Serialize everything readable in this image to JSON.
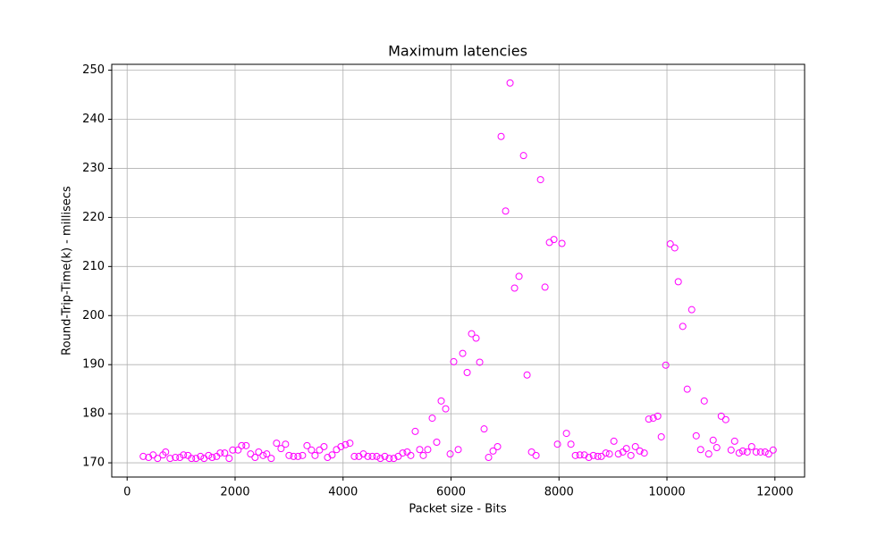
{
  "chart_data": {
    "type": "scatter",
    "title": "Maximum latencies",
    "x_label": "Packet size - Bits",
    "y_label": "Round-Trip-Time(k) - millisecs",
    "color": "#ff00ff",
    "grid": true,
    "xlim": [
      -285,
      12550
    ],
    "ylim": [
      167.1,
      251.2
    ],
    "xticks": [
      0,
      2000,
      4000,
      6000,
      8000,
      10000,
      12000
    ],
    "yticks": [
      170,
      180,
      190,
      200,
      210,
      220,
      230,
      240,
      250
    ],
    "x": [
      298,
      398,
      481,
      564,
      663,
      713,
      796,
      895,
      978,
      1044,
      1127,
      1193,
      1276,
      1359,
      1425,
      1508,
      1575,
      1658,
      1724,
      1807,
      1890,
      1956,
      2055,
      2122,
      2204,
      2287,
      2370,
      2437,
      2519,
      2586,
      2669,
      2768,
      2851,
      2934,
      3000,
      3083,
      3166,
      3249,
      3332,
      3415,
      3481,
      3564,
      3647,
      3713,
      3796,
      3879,
      3961,
      4044,
      4127,
      4210,
      4293,
      4376,
      4459,
      4542,
      4624,
      4691,
      4774,
      4856,
      4939,
      5022,
      5105,
      5188,
      5254,
      5337,
      5420,
      5486,
      5569,
      5652,
      5735,
      5818,
      5901,
      5984,
      6050,
      6133,
      6216,
      6299,
      6381,
      6464,
      6531,
      6613,
      6696,
      6779,
      6862,
      6928,
      7011,
      7094,
      7177,
      7260,
      7343,
      7409,
      7492,
      7575,
      7658,
      7741,
      7823,
      7906,
      7972,
      8055,
      8138,
      8221,
      8304,
      8387,
      8470,
      8553,
      8636,
      8718,
      8785,
      8868,
      8934,
      9017,
      9100,
      9183,
      9249,
      9332,
      9415,
      9497,
      9580,
      9663,
      9746,
      9829,
      9895,
      9978,
      10061,
      10144,
      10210,
      10293,
      10376,
      10459,
      10542,
      10624,
      10691,
      10774,
      10856,
      10923,
      11006,
      11089,
      11188,
      11254,
      11337,
      11404,
      11486,
      11569,
      11652,
      11735,
      11818,
      11884,
      11967
    ],
    "values": [
      171.3,
      171.1,
      171.6,
      170.9,
      171.6,
      172.2,
      170.9,
      171.1,
      171.1,
      171.6,
      171.5,
      170.9,
      170.9,
      171.3,
      170.9,
      171.5,
      171.1,
      171.3,
      172.0,
      172.0,
      170.9,
      172.6,
      172.6,
      173.5,
      173.5,
      171.8,
      171.1,
      172.2,
      171.5,
      171.8,
      170.9,
      174.0,
      172.9,
      173.8,
      171.5,
      171.3,
      171.3,
      171.5,
      173.5,
      172.6,
      171.5,
      172.6,
      173.3,
      171.1,
      171.6,
      172.7,
      173.3,
      173.7,
      174.0,
      171.3,
      171.3,
      171.8,
      171.3,
      171.3,
      171.3,
      170.9,
      171.3,
      170.9,
      170.9,
      171.3,
      172.0,
      172.2,
      171.5,
      176.4,
      172.7,
      171.5,
      172.7,
      179.1,
      174.2,
      182.6,
      181.0,
      171.8,
      190.6,
      172.7,
      192.3,
      188.4,
      196.3,
      195.4,
      190.5,
      176.9,
      171.1,
      172.4,
      173.3,
      236.5,
      221.3,
      247.4,
      205.6,
      208.0,
      232.6,
      187.9,
      172.2,
      171.5,
      227.7,
      205.8,
      214.9,
      215.5,
      173.8,
      214.7,
      176.0,
      173.8,
      171.5,
      171.6,
      171.6,
      171.1,
      171.5,
      171.3,
      171.3,
      172.0,
      171.8,
      174.4,
      171.8,
      172.2,
      172.9,
      171.5,
      173.3,
      172.4,
      172.0,
      178.9,
      179.1,
      179.5,
      175.3,
      189.9,
      214.6,
      213.8,
      206.9,
      197.8,
      185.0,
      201.2,
      175.5,
      172.7,
      182.6,
      171.8,
      174.6,
      173.1,
      179.5,
      178.8,
      172.6,
      174.4,
      172.0,
      172.4,
      172.2,
      173.3,
      172.2,
      172.2,
      172.2,
      171.8,
      172.6
    ]
  }
}
